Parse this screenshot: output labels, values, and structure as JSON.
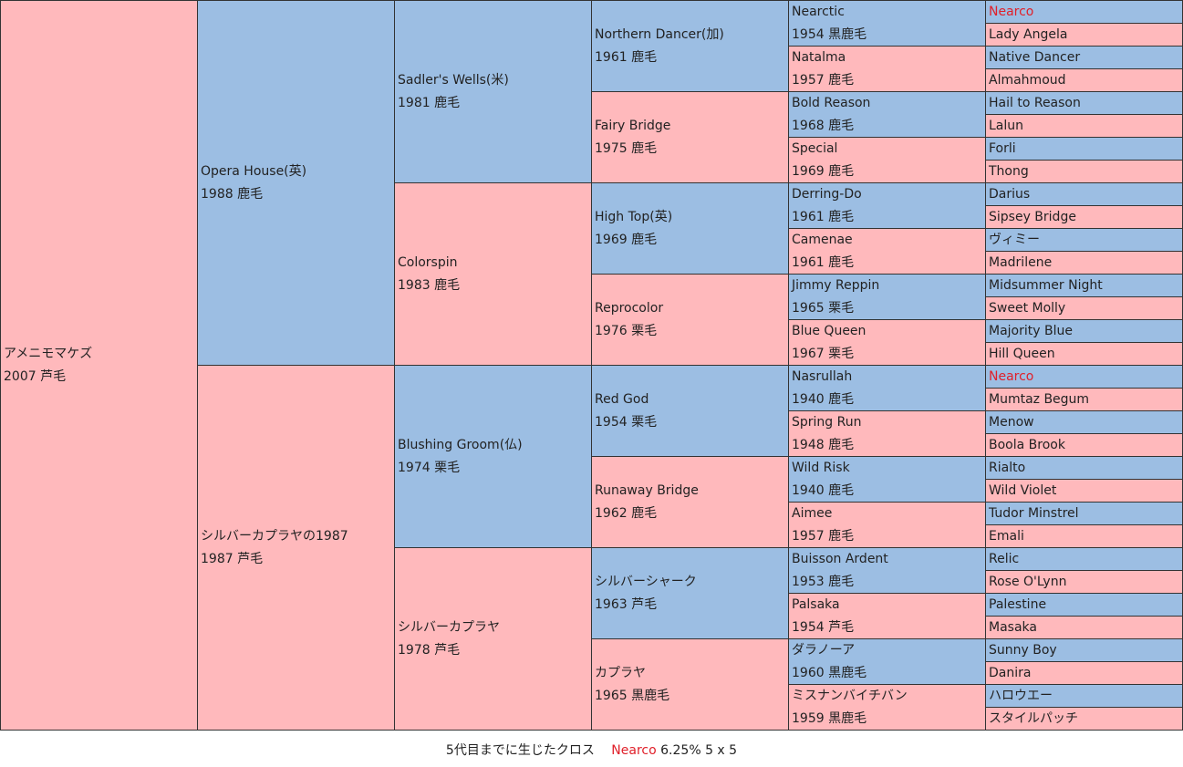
{
  "horse": {
    "name": "アメニモマケズ",
    "info": "2007 芦毛"
  },
  "gen1": [
    {
      "name": "Opera House(英)",
      "info": "1988 鹿毛"
    },
    {
      "name": "シルバーカプラヤの1987",
      "info": "1987 芦毛"
    }
  ],
  "gen2": [
    {
      "name": "Sadler's Wells(米)",
      "info": "1981 鹿毛"
    },
    {
      "name": "Colorspin",
      "info": "1983 鹿毛"
    },
    {
      "name": "Blushing Groom(仏)",
      "info": "1974 栗毛"
    },
    {
      "name": "シルバーカプラヤ",
      "info": "1978 芦毛"
    }
  ],
  "gen3": [
    {
      "name": "Northern Dancer(加)",
      "info": "1961 鹿毛"
    },
    {
      "name": "Fairy Bridge",
      "info": "1975 鹿毛"
    },
    {
      "name": "High Top(英)",
      "info": "1969 鹿毛"
    },
    {
      "name": "Reprocolor",
      "info": "1976 栗毛"
    },
    {
      "name": "Red God",
      "info": "1954 栗毛"
    },
    {
      "name": "Runaway Bridge",
      "info": "1962 鹿毛"
    },
    {
      "name": "シルバーシャーク",
      "info": "1963 芦毛"
    },
    {
      "name": "カプラヤ",
      "info": "1965 黒鹿毛"
    }
  ],
  "gen4": [
    {
      "name": "Nearctic",
      "info": "1954 黒鹿毛"
    },
    {
      "name": "Natalma",
      "info": "1957 鹿毛"
    },
    {
      "name": "Bold Reason",
      "info": "1968 鹿毛"
    },
    {
      "name": "Special",
      "info": "1969 鹿毛"
    },
    {
      "name": "Derring-Do",
      "info": "1961 鹿毛"
    },
    {
      "name": "Camenae",
      "info": "1961 鹿毛"
    },
    {
      "name": "Jimmy Reppin",
      "info": "1965 栗毛"
    },
    {
      "name": "Blue Queen",
      "info": "1967 栗毛"
    },
    {
      "name": "Nasrullah",
      "info": "1940 鹿毛"
    },
    {
      "name": "Spring Run",
      "info": "1948 鹿毛"
    },
    {
      "name": "Wild Risk",
      "info": "1940 鹿毛"
    },
    {
      "name": "Aimee",
      "info": "1957 鹿毛"
    },
    {
      "name": "Buisson Ardent",
      "info": "1953 鹿毛"
    },
    {
      "name": "Palsaka",
      "info": "1954 芦毛"
    },
    {
      "name": "ダラノーア",
      "info": "1960 黒鹿毛"
    },
    {
      "name": "ミスナンバイチバン",
      "info": "1959 黒鹿毛"
    }
  ],
  "gen5": [
    "Nearco",
    "Lady Angela",
    "Native Dancer",
    "Almahmoud",
    "Hail to Reason",
    "Lalun",
    "Forli",
    "Thong",
    "Darius",
    "Sipsey Bridge",
    "ヴィミー",
    "Madrilene",
    "Midsummer Night",
    "Sweet Molly",
    "Majority Blue",
    "Hill Queen",
    "Nearco",
    "Mumtaz Begum",
    "Menow",
    "Boola Brook",
    "Rialto",
    "Wild Violet",
    "Tudor Minstrel",
    "Emali",
    "Relic",
    "Rose O'Lynn",
    "Palestine",
    "Masaka",
    "Sunny Boy",
    "Danira",
    "ハロウエー",
    "スタイルパッチ"
  ],
  "footer": {
    "label": "5代目までに生じたクロス",
    "cross_name": "Nearco",
    "cross_value": "6.25% 5 x 5"
  },
  "colors": {
    "male": "#9cbee3",
    "female": "#ffb9bc",
    "cross": "#e0202a"
  }
}
